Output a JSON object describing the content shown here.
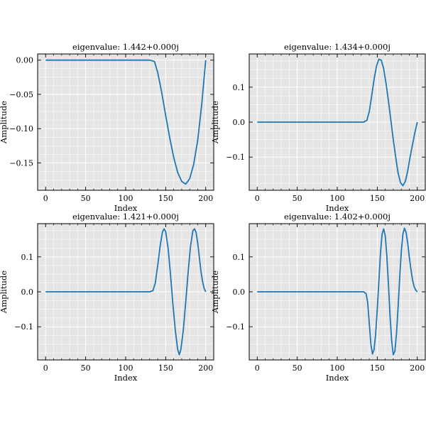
{
  "chart_data": [
    {
      "type": "line",
      "title": "eigenvalue: 1.442+0.000j",
      "xlabel": "Index",
      "ylabel": "Amplitude",
      "xlim": [
        -10,
        210
      ],
      "ylim": [
        -0.19,
        0.009
      ],
      "xticks": [
        0,
        50,
        100,
        150,
        200
      ],
      "xtick_labels": [
        "0",
        "50",
        "100",
        "150",
        "200"
      ],
      "yticks": [
        0.0,
        -0.05,
        -0.1,
        -0.15
      ],
      "ytick_labels": [
        "0.00",
        "−0.05",
        "−0.10",
        "−0.15"
      ],
      "grid": true,
      "series": [
        {
          "color": "#1f77b4",
          "x": [
            0,
            130,
            136,
            140,
            145,
            150,
            155,
            160,
            165,
            170,
            175,
            180,
            185,
            190,
            195,
            200
          ],
          "y": [
            0,
            0,
            -0.002,
            -0.018,
            -0.047,
            -0.081,
            -0.113,
            -0.142,
            -0.164,
            -0.177,
            -0.181,
            -0.173,
            -0.152,
            -0.117,
            -0.065,
            0
          ]
        }
      ]
    },
    {
      "type": "line",
      "title": "eigenvalue: 1.434+0.000j",
      "xlabel": "Index",
      "ylabel": "Amplitude",
      "xlim": [
        -10,
        210
      ],
      "ylim": [
        -0.195,
        0.195
      ],
      "xticks": [
        0,
        50,
        100,
        150,
        200
      ],
      "xtick_labels": [
        "0",
        "50",
        "100",
        "150",
        "200"
      ],
      "yticks": [
        0.1,
        0.0,
        -0.1
      ],
      "ytick_labels": [
        "0.1",
        "0.0",
        "−0.1"
      ],
      "grid": true,
      "series": [
        {
          "color": "#1f77b4",
          "x": [
            0,
            133,
            137,
            140,
            143,
            146,
            149,
            152,
            155,
            158,
            161,
            164,
            167,
            170,
            173,
            176,
            179,
            182,
            185,
            188,
            191,
            194,
            197,
            200
          ],
          "y": [
            0,
            0,
            0.005,
            0.03,
            0.075,
            0.122,
            0.16,
            0.18,
            0.177,
            0.153,
            0.11,
            0.06,
            0.005,
            -0.05,
            -0.1,
            -0.145,
            -0.173,
            -0.182,
            -0.17,
            -0.14,
            -0.1,
            -0.065,
            -0.03,
            0
          ]
        }
      ]
    },
    {
      "type": "line",
      "title": "eigenvalue: 1.421+0.000j",
      "xlabel": "Index",
      "ylabel": "Amplitude",
      "xlim": [
        -10,
        210
      ],
      "ylim": [
        -0.195,
        0.195
      ],
      "xticks": [
        0,
        50,
        100,
        150,
        200
      ],
      "xtick_labels": [
        "0",
        "50",
        "100",
        "150",
        "200"
      ],
      "yticks": [
        0.1,
        0.0,
        -0.1
      ],
      "ytick_labels": [
        "0.1",
        "0.0",
        "−0.1"
      ],
      "grid": true,
      "series": [
        {
          "color": "#1f77b4",
          "x": [
            0,
            130,
            134,
            137,
            140,
            143,
            146,
            148,
            150,
            153,
            156,
            159,
            162,
            165,
            167,
            169,
            172,
            175,
            178,
            181,
            184,
            186,
            188,
            190,
            192,
            194,
            196,
            198,
            200
          ],
          "y": [
            0,
            0,
            0.003,
            0.025,
            0.075,
            0.13,
            0.172,
            0.18,
            0.172,
            0.125,
            0.05,
            -0.035,
            -0.11,
            -0.165,
            -0.18,
            -0.165,
            -0.11,
            -0.03,
            0.055,
            0.13,
            0.175,
            0.18,
            0.17,
            0.14,
            0.1,
            0.06,
            0.03,
            0.01,
            0
          ]
        }
      ]
    },
    {
      "type": "line",
      "title": "eigenvalue: 1.402+0.000j",
      "xlabel": "Index",
      "ylabel": "Amplitude",
      "xlim": [
        -10,
        210
      ],
      "ylim": [
        -0.195,
        0.195
      ],
      "xticks": [
        0,
        50,
        100,
        150,
        200
      ],
      "xtick_labels": [
        "0",
        "50",
        "100",
        "150",
        "200"
      ],
      "yticks": [
        0.1,
        0.0,
        -0.1
      ],
      "ytick_labels": [
        "0.1",
        "0.0",
        "−0.1"
      ],
      "grid": true,
      "series": [
        {
          "color": "#1f77b4",
          "x": [
            0,
            133,
            136,
            138,
            140,
            142,
            144,
            146,
            148,
            150,
            152,
            154,
            156,
            158,
            160,
            162,
            164,
            166,
            168,
            170,
            172,
            174,
            176,
            178,
            180,
            182,
            184,
            186,
            188,
            190,
            192,
            194,
            196,
            198,
            200
          ],
          "y": [
            0,
            0,
            -0.005,
            -0.03,
            -0.09,
            -0.15,
            -0.178,
            -0.165,
            -0.12,
            -0.05,
            0.03,
            0.11,
            0.165,
            0.18,
            0.16,
            0.1,
            0.02,
            -0.07,
            -0.14,
            -0.18,
            -0.17,
            -0.12,
            -0.045,
            0.04,
            0.115,
            0.165,
            0.182,
            0.17,
            0.14,
            0.1,
            0.065,
            0.035,
            0.015,
            0.005,
            0
          ]
        }
      ]
    }
  ]
}
